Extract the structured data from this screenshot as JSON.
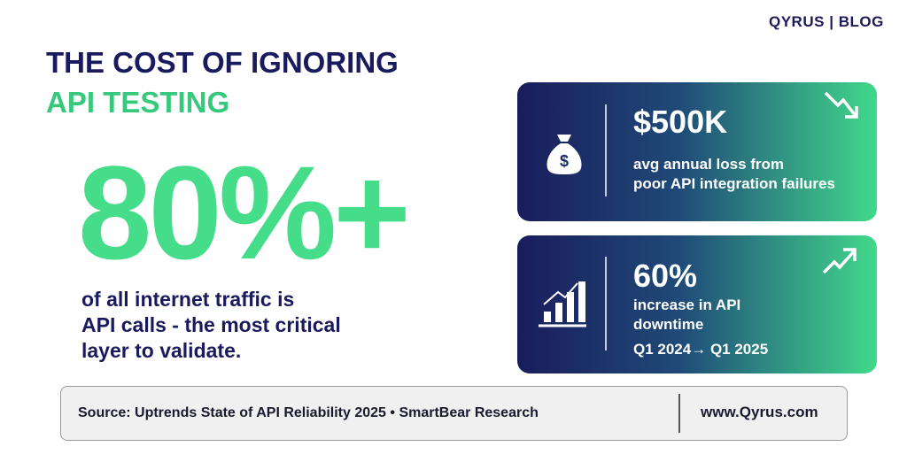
{
  "brand": {
    "name": "QYRUS",
    "section": "BLOG"
  },
  "title": {
    "line1": "THE COST OF IGNORING",
    "line2": "API TESTING"
  },
  "headline": {
    "stat": "80%+",
    "description": [
      "of all internet traffic is",
      "API calls - the most critical",
      "layer to validate."
    ]
  },
  "cards": [
    {
      "value": "$500K",
      "text": [
        "avg annual loss from",
        "poor API integration failures"
      ]
    },
    {
      "value": "60%",
      "text": [
        "increase in API",
        "downtime"
      ],
      "period": "Q1 2024→ Q1 2025"
    }
  ],
  "footer": {
    "source": "Source: Uptrends State of API Reliability 2025 • SmartBear Research",
    "url": "www.Qyrus.com"
  }
}
